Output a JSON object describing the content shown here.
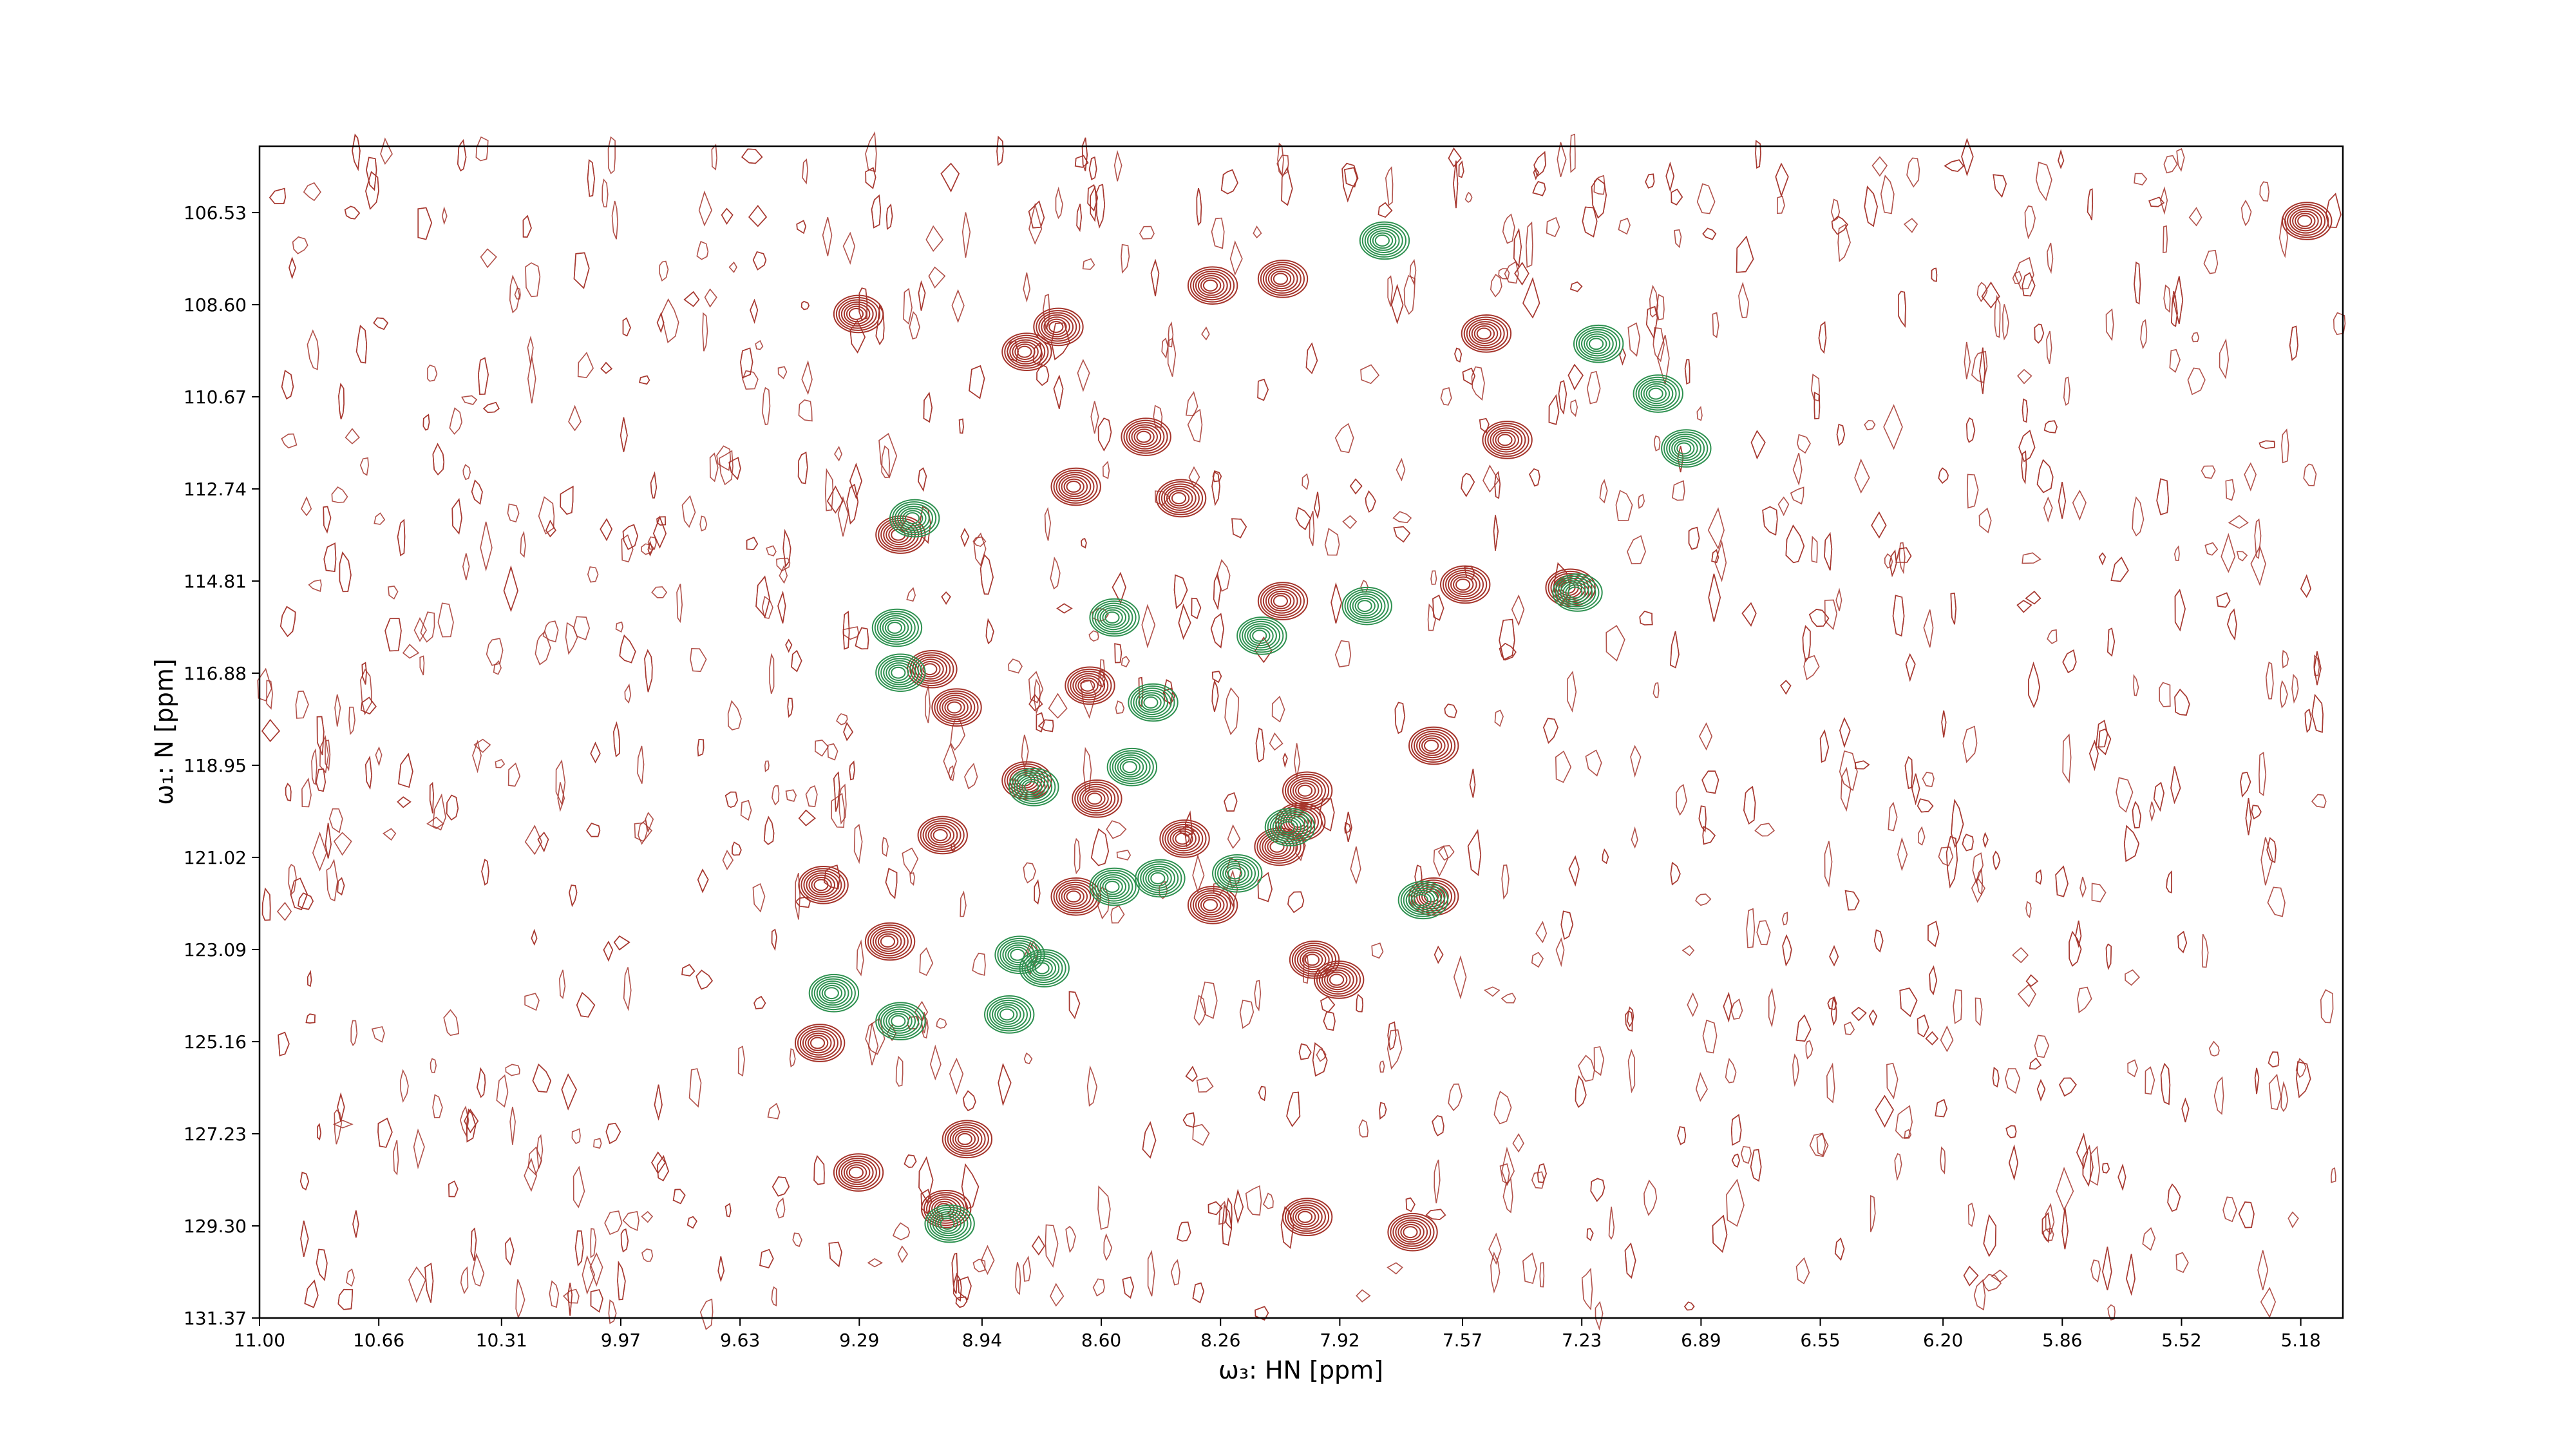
{
  "chart_data": {
    "type": "scatter",
    "x_label": "ω₃: HN [ppm]",
    "y_label": "ω₁: N [ppm]",
    "xlim": [
      11.0,
      5.06
    ],
    "ylim": [
      105.04,
      131.37
    ],
    "xticks": [
      {
        "value": 11.0,
        "label": "11.00"
      },
      10.66,
      10.31,
      9.97,
      9.63,
      9.29,
      8.94,
      {
        "value": 8.6,
        "label": "8.60"
      },
      8.26,
      7.92,
      7.57,
      7.23,
      6.89,
      6.55,
      {
        "value": 6.2,
        "label": "6.20"
      },
      5.86,
      5.52,
      5.18
    ],
    "yticks": [
      106.53,
      {
        "value": 108.6,
        "label": "108.60"
      },
      110.67,
      112.74,
      114.81,
      116.88,
      118.95,
      121.02,
      123.09,
      125.16,
      127.23,
      {
        "value": 129.3,
        "label": "129.30"
      },
      131.37
    ],
    "series": [
      {
        "color": "#a5342b",
        "x": [
          9.3,
          8.73,
          8.82,
          8.29,
          8.09,
          7.51,
          8.48,
          8.68,
          8.38,
          9.18,
          7.57,
          7.27,
          8.09,
          9.09,
          8.64,
          9.02,
          7.66,
          8.02,
          8.04,
          8.37,
          8.62,
          9.06,
          9.4,
          8.29,
          8.68,
          7.66,
          9.21,
          8.0,
          7.93,
          9.41,
          8.99,
          9.3,
          9.05,
          8.02,
          7.72,
          7.45,
          5.17,
          8.1,
          8.82
        ],
        "values": [
          108.81,
          109.1,
          109.66,
          108.17,
          108.02,
          109.25,
          111.57,
          112.69,
          112.95,
          113.77,
          114.89,
          114.96,
          115.26,
          116.79,
          117.16,
          117.65,
          118.51,
          119.52,
          120.22,
          120.6,
          119.7,
          120.52,
          121.64,
          122.09,
          121.9,
          121.9,
          122.91,
          123.32,
          123.77,
          125.19,
          127.35,
          128.1,
          128.92,
          129.1,
          129.44,
          111.64,
          106.72,
          120.78,
          119.29
        ]
      },
      {
        "color": "#2e9150",
        "x": [
          7.8,
          7.19,
          7.02,
          9.14,
          9.19,
          9.18,
          8.57,
          7.85,
          8.15,
          7.25,
          8.46,
          8.8,
          8.52,
          8.44,
          8.57,
          8.22,
          8.07,
          8.84,
          8.77,
          9.37,
          9.18,
          8.87,
          9.04,
          7.69,
          6.94
        ],
        "values": [
          107.16,
          109.48,
          110.6,
          113.4,
          115.86,
          116.87,
          115.63,
          115.37,
          116.04,
          115.07,
          117.54,
          119.44,
          118.99,
          121.49,
          121.68,
          121.38,
          120.34,
          123.21,
          123.51,
          124.07,
          124.7,
          124.55,
          129.25,
          121.98,
          111.83
        ]
      }
    ]
  }
}
